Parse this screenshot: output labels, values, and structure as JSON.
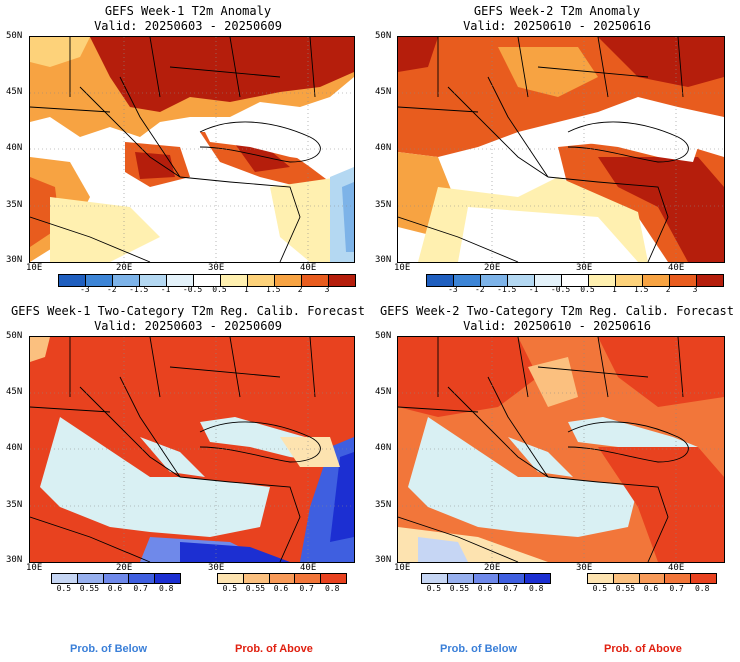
{
  "panels": [
    {
      "title": "GEFS Week-1 T2m Anomaly",
      "valid": "Valid: 20250603 - 20250609"
    },
    {
      "title": "GEFS Week-2 T2m Anomaly",
      "valid": "Valid: 20250610 - 20250616"
    },
    {
      "title": "GEFS Week-1 Two-Category T2m Reg. Calib. Forecast",
      "valid": "Valid: 20250603 - 20250609"
    },
    {
      "title": "GEFS Week-2 Two-Category T2m Reg. Calib. Forecast",
      "valid": "Valid: 20250610 - 20250616"
    }
  ],
  "lat_labels": [
    "50N",
    "45N",
    "40N",
    "35N",
    "30N"
  ],
  "lon_labels": [
    "10E",
    "20E",
    "30E",
    "40E"
  ],
  "anomaly_colorbar": {
    "labels": [
      "-3",
      "-2",
      "-1.5",
      "-1",
      "-0.5",
      "0.5",
      "1",
      "1.5",
      "2",
      "3"
    ],
    "colors": [
      "#1f5fbf",
      "#3d85d6",
      "#7db3e8",
      "#b4d8f2",
      "#e4f2fa",
      "#ffffff",
      "#fff0b0",
      "#fdd27a",
      "#f7a342",
      "#e85c1e",
      "#b51e0c"
    ]
  },
  "prob_below": {
    "labels": [
      "0.5",
      "0.55",
      "0.6",
      "0.7",
      "0.8"
    ],
    "colors": [
      "#c6d6f4",
      "#97b0ef",
      "#6f89ea",
      "#3f5fe0",
      "#1c2fd2"
    ],
    "caption": "Prob. of Below",
    "caption_color": "#3a7fd8"
  },
  "prob_above": {
    "labels": [
      "0.5",
      "0.55",
      "0.6",
      "0.7",
      "0.8"
    ],
    "colors": [
      "#fde3b0",
      "#fbc07f",
      "#f89a58",
      "#f2763a",
      "#e8421f"
    ],
    "caption": "Prob. of Above",
    "caption_color": "#e02010"
  }
}
